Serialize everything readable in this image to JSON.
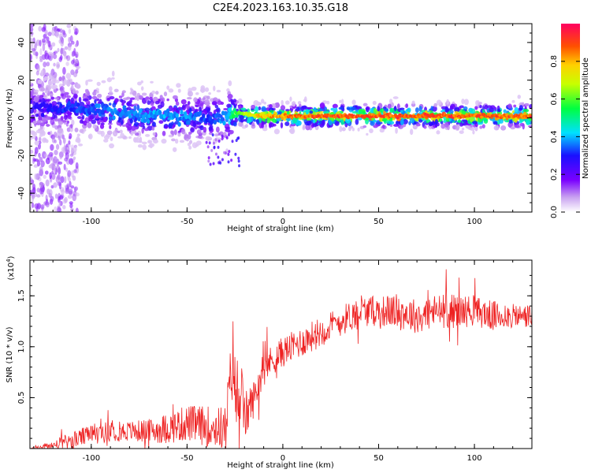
{
  "title": "C2E4.2023.163.10.35.G18",
  "chart_data": [
    {
      "type": "heatmap",
      "xlabel": "Height of straight line (km)",
      "ylabel": "Frequency (Hz)",
      "xlim": [
        -132,
        130
      ],
      "ylim": [
        -50,
        50
      ],
      "xticks": [
        -100,
        -50,
        0,
        50,
        100
      ],
      "yticks": [
        -40,
        -20,
        0,
        20,
        40
      ],
      "colorbar": {
        "label": "Normalized spectral amplitude",
        "range": [
          0.0,
          1.0
        ],
        "ticks": [
          "0.0",
          "0.2",
          "0.4",
          "0.6",
          "0.8"
        ]
      },
      "ridge_profile": {
        "x": [
          -125,
          -110,
          -95,
          -80,
          -65,
          -50,
          -40,
          -30,
          -25,
          -20,
          -10,
          0,
          20,
          40,
          60,
          80,
          100,
          128
        ],
        "freq_hz": [
          5,
          5,
          4,
          2,
          1,
          0,
          0,
          0,
          3,
          2,
          1,
          1,
          1,
          1,
          1,
          1,
          1,
          1
        ],
        "peak_amplitude": [
          0.3,
          0.35,
          0.38,
          0.4,
          0.42,
          0.4,
          0.35,
          0.4,
          0.6,
          0.75,
          0.85,
          0.9,
          0.95,
          0.95,
          0.95,
          0.95,
          0.95,
          0.95
        ]
      }
    },
    {
      "type": "line",
      "xlabel": "Height of straight line (km)",
      "ylabel": "SNR (10 * v/v)",
      "y_scale_note": "(x10",
      "y_scale_exp": "4",
      "xlim": [
        -132,
        130
      ],
      "ylim": [
        0,
        1.85
      ],
      "xticks": [
        -100,
        -50,
        0,
        50,
        100
      ],
      "yticks": [
        "0.5",
        "1.0",
        "1.5"
      ],
      "ytick_values": [
        0.5,
        1.0,
        1.5
      ],
      "series": [
        {
          "color": "#ee2222",
          "x": [
            -132,
            -120,
            -110,
            -100,
            -90,
            -80,
            -70,
            -60,
            -50,
            -40,
            -30,
            -26,
            -24,
            -22,
            -20,
            -15,
            -10,
            0,
            10,
            20,
            30,
            40,
            50,
            60,
            70,
            80,
            90,
            100,
            110,
            120,
            130
          ],
          "y": [
            0.0,
            0.03,
            0.08,
            0.14,
            0.17,
            0.17,
            0.17,
            0.2,
            0.25,
            0.22,
            0.2,
            0.9,
            0.35,
            0.6,
            0.3,
            0.5,
            0.8,
            0.95,
            1.05,
            1.15,
            1.25,
            1.35,
            1.35,
            1.35,
            1.3,
            1.35,
            1.35,
            1.35,
            1.3,
            1.3,
            1.3
          ],
          "noise": [
            0.0,
            0.05,
            0.08,
            0.1,
            0.1,
            0.1,
            0.12,
            0.15,
            0.18,
            0.2,
            0.22,
            0.4,
            0.35,
            0.3,
            0.25,
            0.18,
            0.15,
            0.15,
            0.15,
            0.15,
            0.15,
            0.15,
            0.15,
            0.17,
            0.17,
            0.17,
            0.17,
            0.15,
            0.15,
            0.12,
            0.12
          ]
        }
      ]
    }
  ]
}
